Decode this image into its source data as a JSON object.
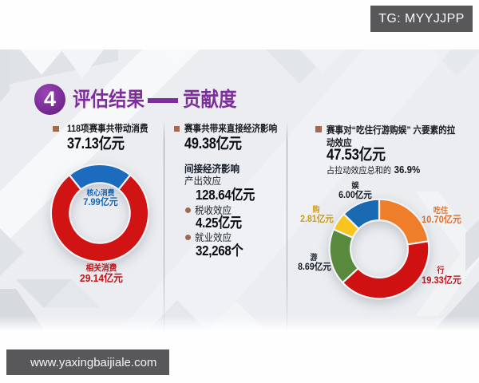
{
  "badges": {
    "telegram": "TG: MYYJJPP",
    "website": "www.yaxingbaijiale.com"
  },
  "title": {
    "number": "4",
    "part1": "评估结果",
    "part2": "贡献度"
  },
  "columns": {
    "consumption": {
      "header": "118项赛事共带动消费",
      "value": "37.13亿元"
    },
    "economic": {
      "header": "赛事共带来直接经济影响",
      "value": "49.38亿元",
      "indirect_title": "间接经济影响",
      "items": [
        {
          "label": "产出效应",
          "value": "128.64亿元"
        },
        {
          "label": "税收效应",
          "value": "4.25亿元"
        },
        {
          "label": "就业效应",
          "value": "32,268个"
        }
      ]
    },
    "pull": {
      "header_line1": "赛事对“吃住行游购娱” 六要素的拉",
      "header_line2": "动效应",
      "value": "47.53亿元",
      "share_prefix": "占拉动效应总和的",
      "share_value": "36.9%"
    }
  },
  "chart_data": [
    {
      "type": "pie",
      "title": "118项赛事共带动消费",
      "unit": "亿元",
      "total": 37.13,
      "start_angle_deg": -38.73,
      "clockwise": true,
      "inner_radius_ratio": 0.62,
      "segments": [
        {
          "label": "核心消费",
          "value": 7.99,
          "display": "7.99亿元",
          "color": "#1b6cbe"
        },
        {
          "label": "相关消费",
          "value": 29.14,
          "display": "29.14亿元",
          "color": "#d01413"
        }
      ]
    },
    {
      "type": "pie",
      "title": "赛事对“吃住行游购娱”六要素的拉动效应",
      "unit": "亿元",
      "total": 47.53,
      "start_angle_deg": 0,
      "clockwise": true,
      "inner_radius_ratio": 0.58,
      "segments": [
        {
          "label": "吃住",
          "value": 10.7,
          "display": "10.70亿元",
          "color": "#ef7e2a"
        },
        {
          "label": "行",
          "value": 19.33,
          "display": "19.33亿元",
          "color": "#cf1112"
        },
        {
          "label": "游",
          "value": 8.69,
          "display": "8.69亿元",
          "color": "#59893c"
        },
        {
          "label": "购",
          "value": 2.81,
          "display": "2.81亿元",
          "color": "#f7c51e"
        },
        {
          "label": "娱",
          "value": 6.0,
          "display": "6.00亿元",
          "color": "#1a6ab1"
        }
      ]
    }
  ]
}
